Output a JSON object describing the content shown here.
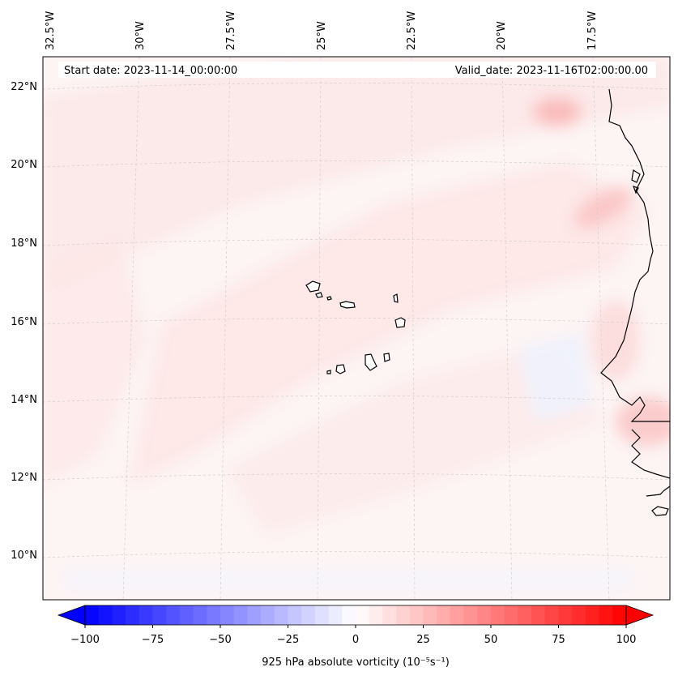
{
  "map": {
    "start_date": "Start date: 2023-11-14_00:00:00",
    "valid_date": "Valid_date: 2023-11-16T02:00:00.00",
    "lon_labels": [
      "32.5°W",
      "30°W",
      "27.5°W",
      "25°W",
      "22.5°W",
      "20°W",
      "17.5°W"
    ],
    "lat_labels": [
      "22°N",
      "20°N",
      "18°N",
      "16°N",
      "14°N",
      "12°N",
      "10°N"
    ]
  },
  "colorbar": {
    "label": "925 hPa absolute vorticity (10⁻⁵s⁻¹)",
    "ticks": [
      "−100",
      "−75",
      "−50",
      "−25",
      "0",
      "25",
      "50",
      "75",
      "100"
    ],
    "min": -100,
    "max": 100,
    "step": 5,
    "negative_color": "#0000ff",
    "positive_color": "#ff0000"
  }
}
